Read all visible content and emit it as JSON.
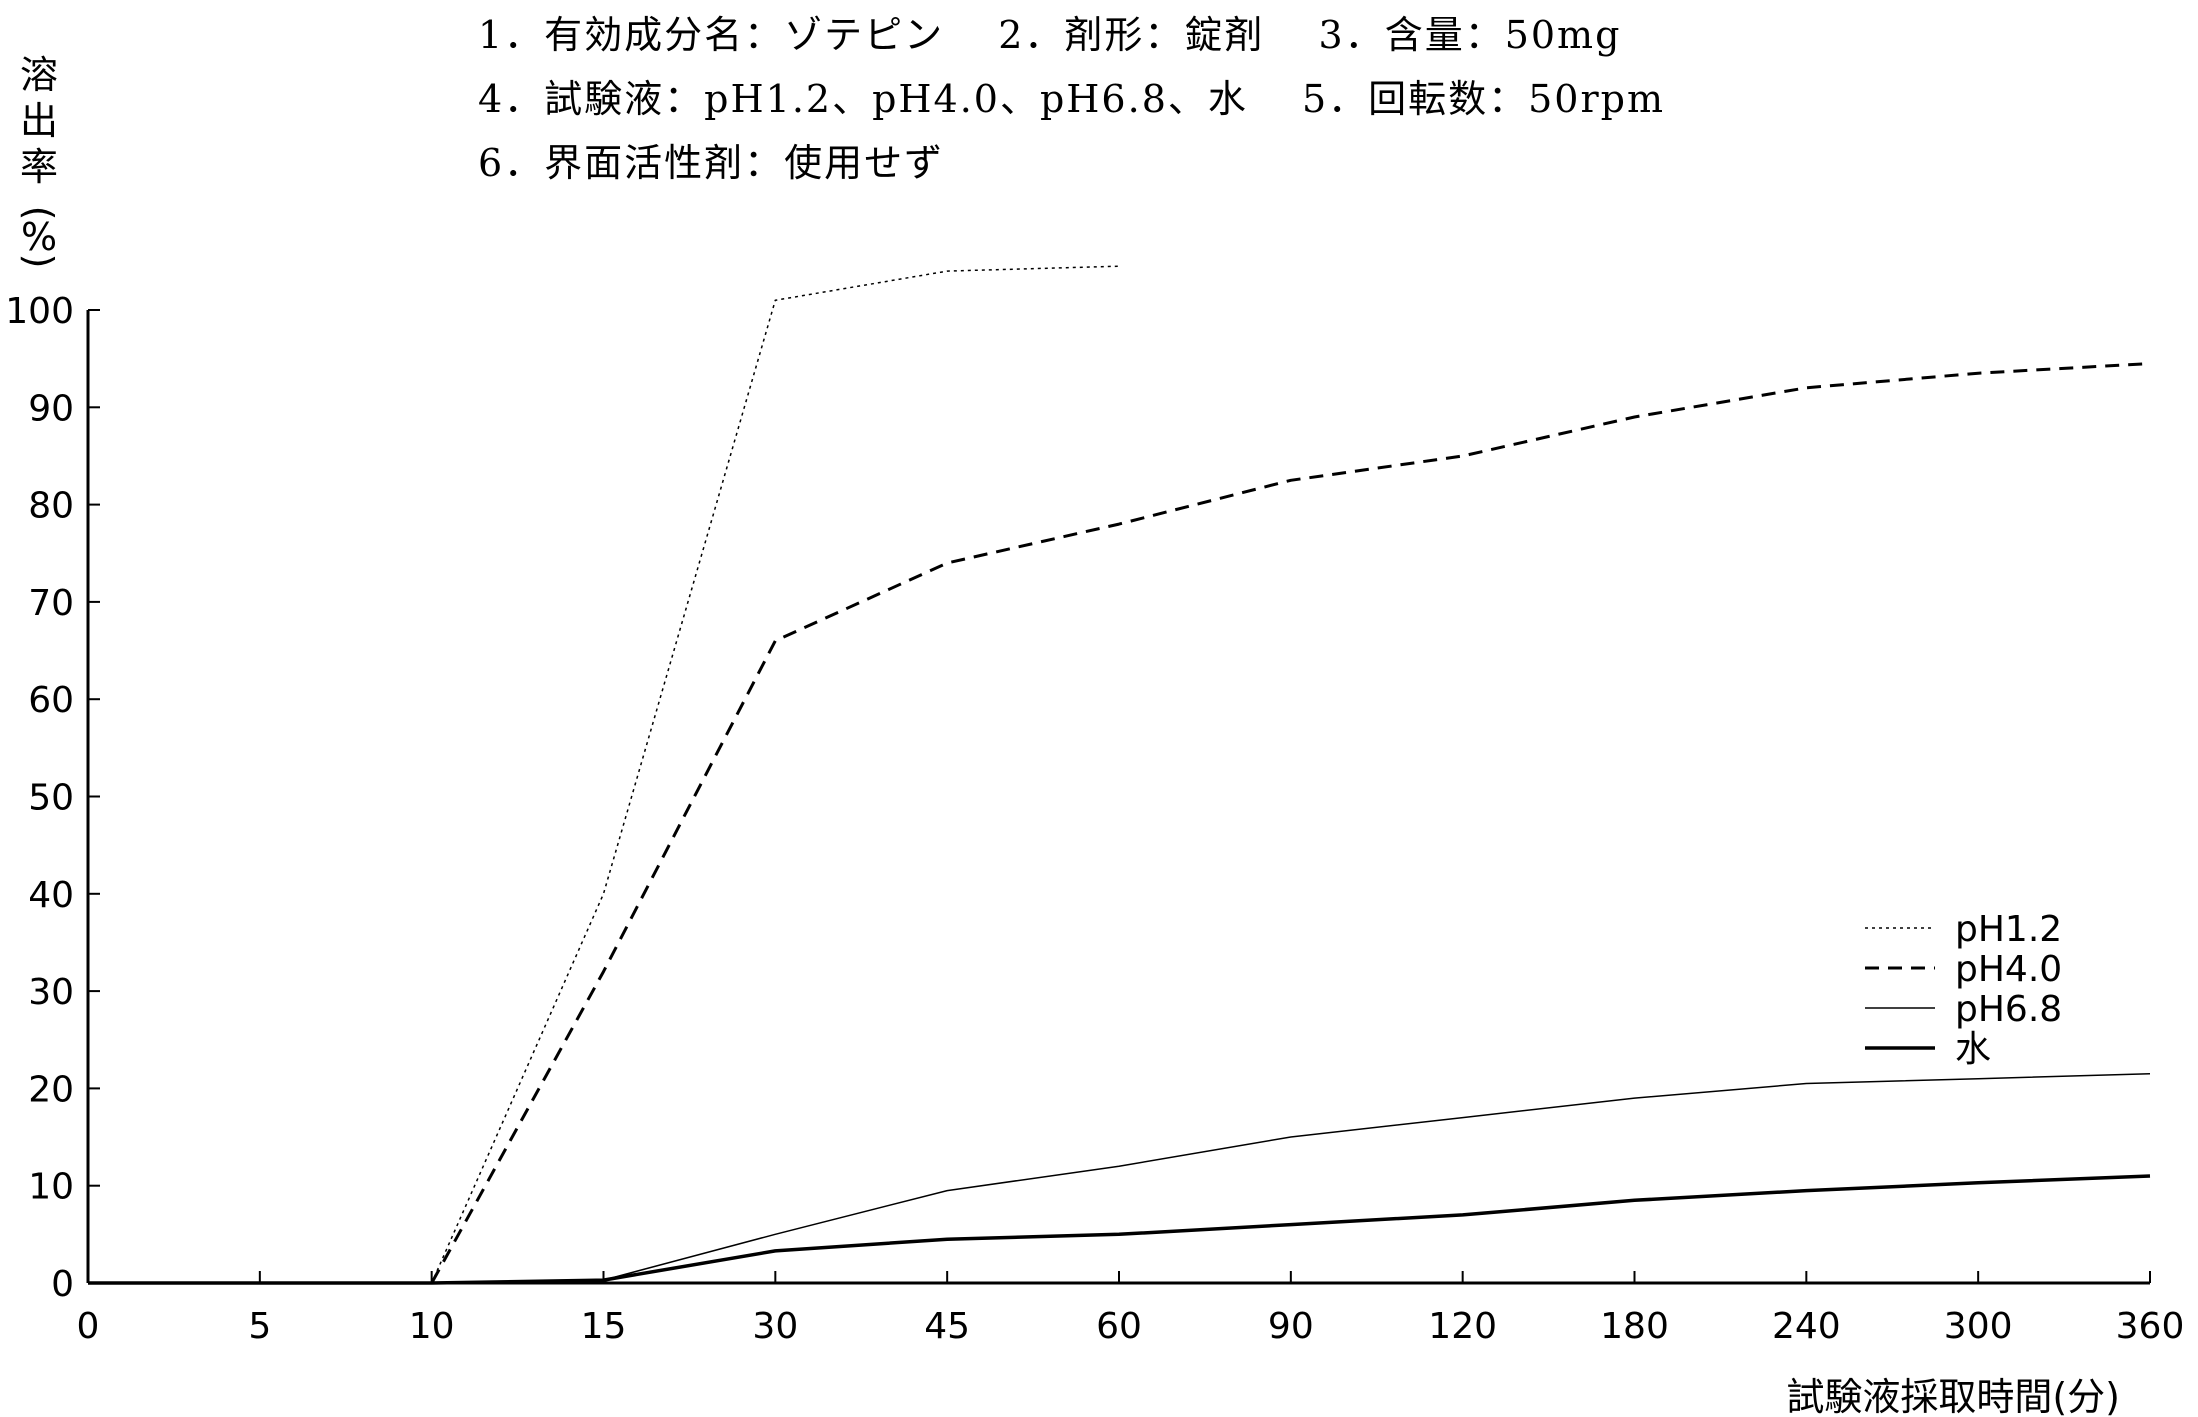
{
  "conditions": [
    "1．有効成分名：ゾテピン　 2．剤形：錠剤　 3．含量：50mg",
    "4．試験液：pH1.2、pH4.0、pH6.8、水　 5．回転数：50rpm",
    "6．界面活性剤：使用せず"
  ],
  "chart_data": {
    "type": "line",
    "title": "",
    "xlabel": "試験液採取時間(分)",
    "ylabel": "溶出率(%)",
    "ylabel_chars": [
      "溶",
      "出",
      "率",
      "(",
      "%",
      ")"
    ],
    "categories": [
      "0",
      "5",
      "10",
      "15",
      "30",
      "45",
      "60",
      "90",
      "120",
      "180",
      "240",
      "300",
      "360"
    ],
    "y_ticks": [
      0,
      10,
      20,
      30,
      40,
      50,
      60,
      70,
      80,
      90,
      100
    ],
    "ylim": [
      0,
      100
    ],
    "grid": false,
    "legend_position": "right",
    "series": [
      {
        "name": "pH1.2",
        "style": "dotted",
        "values": [
          0,
          0,
          0,
          40,
          101,
          104,
          104.5,
          null,
          null,
          null,
          null,
          null,
          null
        ]
      },
      {
        "name": "pH4.0",
        "style": "dashed",
        "values": [
          0,
          0,
          0,
          32,
          66,
          74,
          78,
          82.5,
          85,
          89,
          92,
          93.5,
          94.5
        ]
      },
      {
        "name": "pH6.8",
        "style": "thin-solid",
        "values": [
          0,
          0,
          0,
          0.3,
          5,
          9.5,
          12,
          15,
          17,
          19,
          20.5,
          21,
          21.5
        ]
      },
      {
        "name": "水",
        "style": "thick-solid",
        "values": [
          0,
          0,
          0,
          0.3,
          3.3,
          4.5,
          5,
          6,
          7,
          8.5,
          9.5,
          10.3,
          11
        ]
      }
    ]
  },
  "colors": {
    "line": "#000000",
    "background": "#ffffff"
  }
}
